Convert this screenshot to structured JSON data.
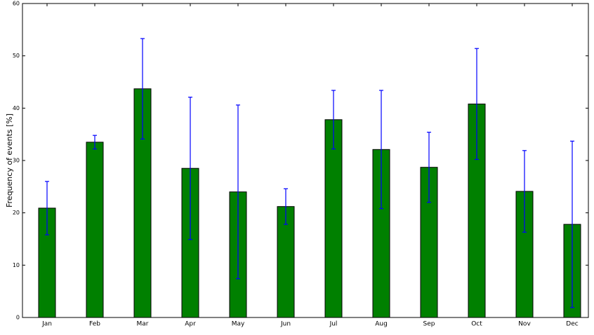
{
  "chart_data": {
    "type": "bar",
    "y_label": "Frequency of events [%]",
    "categories": [
      "Jan",
      "Feb",
      "Mar",
      "Apr",
      "May",
      "Jun",
      "Jul",
      "Aug",
      "Sep",
      "Oct",
      "Nov",
      "Dec"
    ],
    "values": [
      20.9,
      33.5,
      43.7,
      28.5,
      24.0,
      21.2,
      37.8,
      32.1,
      28.7,
      40.8,
      24.1,
      17.8
    ],
    "errors": [
      5.1,
      1.3,
      9.6,
      13.6,
      16.6,
      3.4,
      5.6,
      11.3,
      6.7,
      10.6,
      7.8,
      15.9
    ],
    "color": "#008000",
    "error_color": "#0000ff",
    "ylim": [
      0,
      60
    ],
    "yticks": [
      0,
      10,
      20,
      30,
      40,
      50,
      60
    ],
    "grid": false
  }
}
